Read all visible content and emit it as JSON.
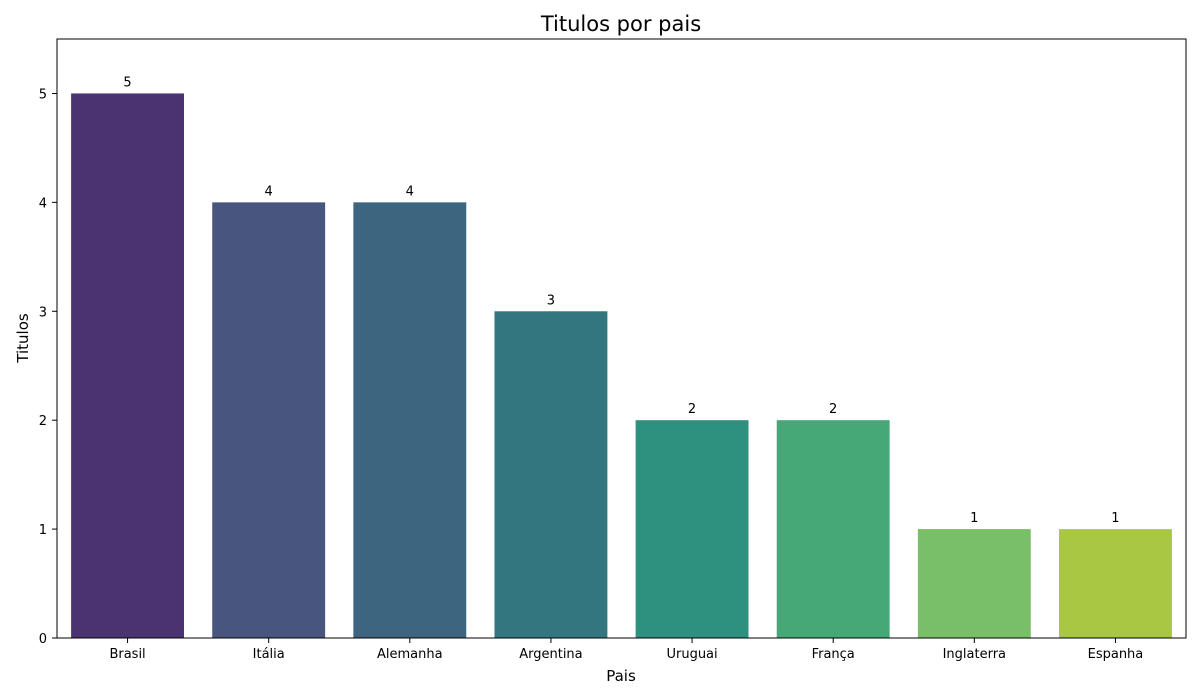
{
  "chart_data": {
    "type": "bar",
    "title": "Titulos por pais",
    "xlabel": "Pais",
    "ylabel": "Titulos",
    "categories": [
      "Brasil",
      "Itália",
      "Alemanha",
      "Argentina",
      "Uruguai",
      "França",
      "Inglaterra",
      "Espanha"
    ],
    "values": [
      5,
      4,
      4,
      3,
      2,
      2,
      1,
      1
    ],
    "colors": [
      "#4a3370",
      "#48557f",
      "#3e6580",
      "#347680",
      "#2e917f",
      "#46a877",
      "#78bf67",
      "#a9c742"
    ],
    "ylim": [
      0,
      5.5
    ],
    "yticks": [
      0,
      1,
      2,
      3,
      4,
      5
    ],
    "grid": false,
    "legend": "none"
  }
}
